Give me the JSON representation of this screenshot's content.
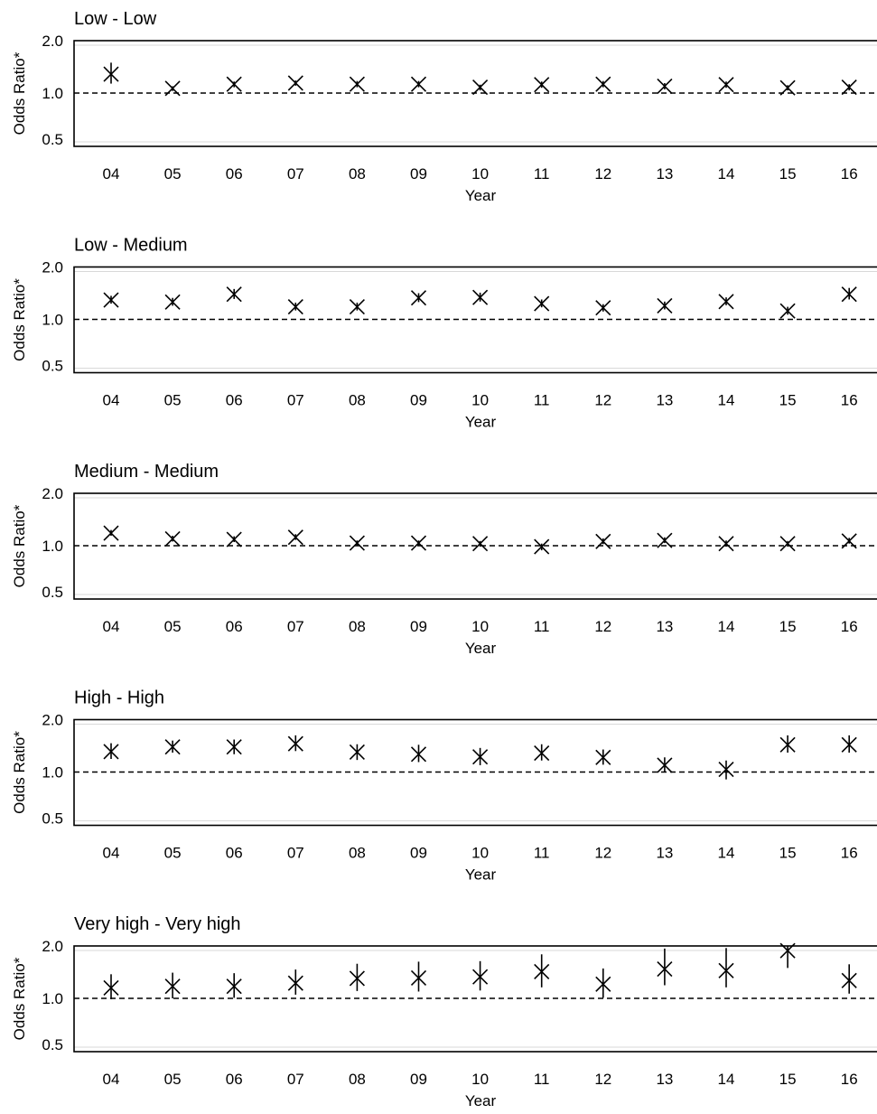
{
  "chart_data": [
    {
      "type": "scatter",
      "title": "Low - Low",
      "xlabel": "Year",
      "ylabel": "Odds Ratio*",
      "categories": [
        "04",
        "05",
        "06",
        "07",
        "08",
        "09",
        "10",
        "11",
        "12",
        "13",
        "14",
        "15",
        "16"
      ],
      "yticks": [
        "2.0",
        "1.0",
        "0.5"
      ],
      "ylim": [
        0.5,
        2.0
      ],
      "reference_line": 1.0,
      "values": [
        1.36,
        1.09,
        1.17,
        1.19,
        1.17,
        1.17,
        1.11,
        1.16,
        1.17,
        1.13,
        1.16,
        1.1,
        1.11
      ],
      "lower": [
        1.18,
        1.04,
        1.11,
        1.14,
        1.11,
        1.11,
        1.05,
        1.1,
        1.11,
        1.07,
        1.1,
        1.05,
        1.05
      ],
      "upper": [
        1.58,
        1.13,
        1.22,
        1.24,
        1.23,
        1.23,
        1.16,
        1.22,
        1.23,
        1.19,
        1.22,
        1.15,
        1.17
      ]
    },
    {
      "type": "scatter",
      "title": "Low - Medium",
      "xlabel": "Year",
      "ylabel": "Odds Ratio*",
      "categories": [
        "04",
        "05",
        "06",
        "07",
        "08",
        "09",
        "10",
        "11",
        "12",
        "13",
        "14",
        "15",
        "16"
      ],
      "yticks": [
        "2.0",
        "1.0",
        "0.5"
      ],
      "ylim": [
        0.5,
        2.0
      ],
      "reference_line": 1.0,
      "values": [
        1.37,
        1.33,
        1.48,
        1.24,
        1.24,
        1.41,
        1.42,
        1.3,
        1.22,
        1.26,
        1.34,
        1.16,
        1.48
      ],
      "lower": [
        1.3,
        1.26,
        1.39,
        1.17,
        1.17,
        1.33,
        1.34,
        1.23,
        1.15,
        1.19,
        1.27,
        1.09,
        1.38
      ],
      "upper": [
        1.45,
        1.41,
        1.58,
        1.32,
        1.32,
        1.5,
        1.51,
        1.38,
        1.29,
        1.34,
        1.42,
        1.24,
        1.6
      ]
    },
    {
      "type": "scatter",
      "title": "Medium - Medium",
      "xlabel": "Year",
      "ylabel": "Odds Ratio*",
      "categories": [
        "04",
        "05",
        "06",
        "07",
        "08",
        "09",
        "10",
        "11",
        "12",
        "13",
        "14",
        "15",
        "16"
      ],
      "yticks": [
        "2.0",
        "1.0",
        "0.5"
      ],
      "ylim": [
        0.5,
        2.0
      ],
      "reference_line": 1.0,
      "values": [
        1.24,
        1.13,
        1.12,
        1.16,
        1.05,
        1.05,
        1.04,
        0.99,
        1.08,
        1.1,
        1.04,
        1.04,
        1.09
      ],
      "lower": [
        1.19,
        1.08,
        1.07,
        1.11,
        1.0,
        1.0,
        0.99,
        0.95,
        1.03,
        1.05,
        0.99,
        0.99,
        1.04
      ],
      "upper": [
        1.3,
        1.19,
        1.18,
        1.22,
        1.1,
        1.1,
        1.09,
        1.04,
        1.14,
        1.16,
        1.1,
        1.09,
        1.15
      ]
    },
    {
      "type": "scatter",
      "title": "High - High",
      "xlabel": "Year",
      "ylabel": "Odds Ratio*",
      "categories": [
        "04",
        "05",
        "06",
        "07",
        "08",
        "09",
        "10",
        "11",
        "12",
        "13",
        "14",
        "15",
        "16"
      ],
      "yticks": [
        "2.0",
        "1.0",
        "0.5"
      ],
      "ylim": [
        0.5,
        2.0
      ],
      "reference_line": 1.0,
      "values": [
        1.39,
        1.48,
        1.48,
        1.54,
        1.38,
        1.34,
        1.29,
        1.36,
        1.28,
        1.13,
        1.05,
        1.52,
        1.52
      ],
      "lower": [
        1.25,
        1.37,
        1.34,
        1.4,
        1.23,
        1.19,
        1.13,
        1.22,
        1.14,
        1.0,
        0.92,
        1.37,
        1.37
      ],
      "upper": [
        1.55,
        1.6,
        1.62,
        1.7,
        1.53,
        1.52,
        1.46,
        1.53,
        1.43,
        1.28,
        1.22,
        1.7,
        1.7
      ]
    },
    {
      "type": "scatter",
      "title": "Very high - Very high",
      "xlabel": "Year",
      "ylabel": "Odds Ratio*",
      "categories": [
        "04",
        "05",
        "06",
        "07",
        "08",
        "09",
        "10",
        "11",
        "12",
        "13",
        "14",
        "15",
        "16"
      ],
      "yticks": [
        "2.0",
        "1.0",
        "0.5"
      ],
      "ylim": [
        0.5,
        2.0
      ],
      "reference_line": 1.0,
      "values": [
        1.2,
        1.23,
        1.23,
        1.29,
        1.38,
        1.39,
        1.41,
        1.51,
        1.27,
        1.56,
        1.53,
        1.91,
        1.34
      ],
      "lower": [
        0.99,
        1.0,
        1.01,
        1.07,
        1.14,
        1.13,
        1.15,
        1.21,
        1.01,
        1.25,
        1.21,
        1.58,
        1.09
      ],
      "upper": [
        1.46,
        1.49,
        1.48,
        1.55,
        1.66,
        1.7,
        1.71,
        1.84,
        1.57,
        1.95,
        1.96,
        2.0,
        1.65
      ]
    }
  ]
}
